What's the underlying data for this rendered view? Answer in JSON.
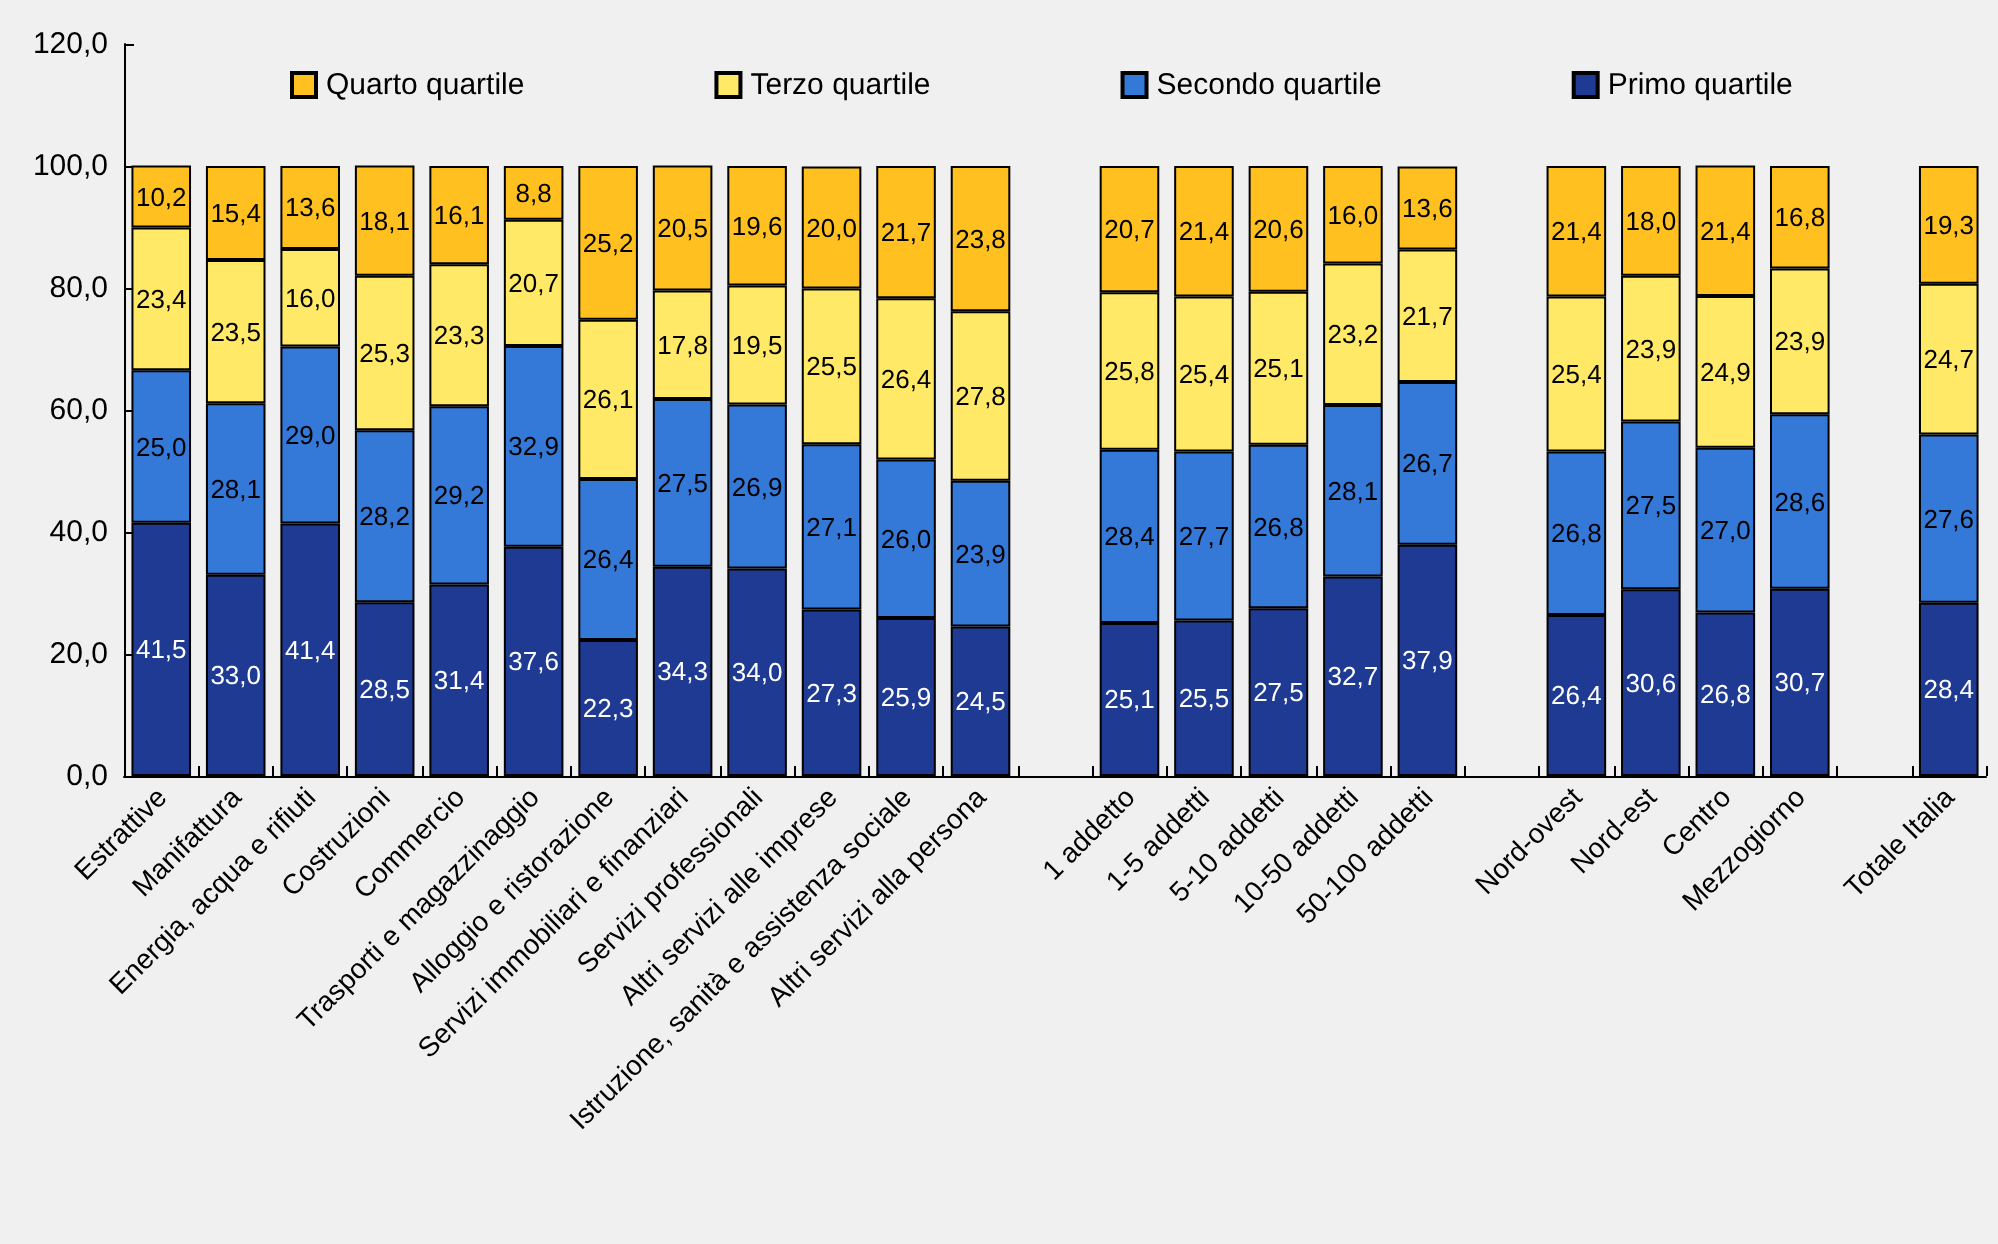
{
  "chart_data": {
    "type": "bar",
    "stacked": true,
    "legend": "top",
    "grid": false,
    "categories": [
      "Estrattive",
      "Manifattura",
      "Energia, acqua e rifiuti",
      "Costruzioni",
      "Commercio",
      "Trasporti e magazzinaggio",
      "Alloggio e ristorazione",
      "Servizi immobiliari e finanziari",
      "Servizi professionali",
      "Altri servizi alle imprese",
      "Istruzione, sanità e assistenza sociale",
      "Altri servizi alla persona",
      null,
      "1 addetto",
      "1-5 addetti",
      "5-10 addetti",
      "10-50 addetti",
      "50-100 addetti",
      null,
      "Nord-ovest",
      "Nord-est",
      "Centro",
      "Mezzogiorno",
      null,
      "Totale Italia"
    ],
    "ylim": [
      0,
      120
    ],
    "yticks": [
      {
        "value": 0,
        "label": "0,0"
      },
      {
        "value": 20,
        "label": "20,0"
      },
      {
        "value": 40,
        "label": "40,0"
      },
      {
        "value": 60,
        "label": "60,0"
      },
      {
        "value": 80,
        "label": "80,0"
      },
      {
        "value": 100,
        "label": "100,0"
      },
      {
        "value": 120,
        "label": "120,0"
      }
    ],
    "series": [
      {
        "name": "Primo quartile",
        "color": "#1f3a93",
        "values": [
          41.5,
          33.0,
          41.4,
          28.5,
          31.4,
          37.6,
          22.3,
          34.3,
          34.0,
          27.3,
          25.9,
          24.5,
          null,
          25.1,
          25.5,
          27.5,
          32.7,
          37.9,
          null,
          26.4,
          30.6,
          26.8,
          30.7,
          null,
          28.4
        ],
        "value_labels": [
          "41,5",
          "33,0",
          "41,4",
          "28,5",
          "31,4",
          "37,6",
          "22,3",
          "34,3",
          "34,0",
          "27,3",
          "25,9",
          "24,5",
          null,
          "25,1",
          "25,5",
          "27,5",
          "32,7",
          "37,9",
          null,
          "26,4",
          "30,6",
          "26,8",
          "30,7",
          null,
          "28,4"
        ]
      },
      {
        "name": "Secondo quartile",
        "color": "#3478d8",
        "values": [
          25.0,
          28.1,
          29.0,
          28.2,
          29.2,
          32.9,
          26.4,
          27.5,
          26.9,
          27.1,
          26.0,
          23.9,
          null,
          28.4,
          27.7,
          26.8,
          28.1,
          26.7,
          null,
          26.8,
          27.5,
          27.0,
          28.6,
          null,
          27.6
        ],
        "value_labels": [
          "25,0",
          "28,1",
          "29,0",
          "28,2",
          "29,2",
          "32,9",
          "26,4",
          "27,5",
          "26,9",
          "27,1",
          "26,0",
          "23,9",
          null,
          "28,4",
          "27,7",
          "26,8",
          "28,1",
          "26,7",
          null,
          "26,8",
          "27,5",
          "27,0",
          "28,6",
          null,
          "27,6"
        ]
      },
      {
        "name": "Terzo quartile",
        "color": "#ffe966",
        "values": [
          23.4,
          23.5,
          16.0,
          25.3,
          23.3,
          20.7,
          26.1,
          17.8,
          19.5,
          25.5,
          26.4,
          27.8,
          null,
          25.8,
          25.4,
          25.1,
          23.2,
          21.7,
          null,
          25.4,
          23.9,
          24.9,
          23.9,
          null,
          24.7
        ],
        "value_labels": [
          "23,4",
          "23,5",
          "16,0",
          "25,3",
          "23,3",
          "20,7",
          "26,1",
          "17,8",
          "19,5",
          "25,5",
          "26,4",
          "27,8",
          null,
          "25,8",
          "25,4",
          "25,1",
          "23,2",
          "21,7",
          null,
          "25,4",
          "23,9",
          "24,9",
          "23,9",
          null,
          "24,7"
        ]
      },
      {
        "name": "Quarto quartile",
        "color": "#ffc020",
        "values": [
          10.2,
          15.4,
          13.6,
          18.1,
          16.1,
          8.8,
          25.2,
          20.5,
          19.6,
          20.0,
          21.7,
          23.8,
          null,
          20.7,
          21.4,
          20.6,
          16.0,
          13.6,
          null,
          21.4,
          18.0,
          21.4,
          16.8,
          null,
          19.3
        ],
        "value_labels": [
          "10,2",
          "15,4",
          "13,6",
          "18,1",
          "16,1",
          "8,8",
          "25,2",
          "20,5",
          "19,6",
          "20,0",
          "21,7",
          "23,8",
          null,
          "20,7",
          "21,4",
          "20,6",
          "16,0",
          "13,6",
          null,
          "21,4",
          "18,0",
          "21,4",
          "16,8",
          null,
          "19,3"
        ]
      }
    ]
  }
}
